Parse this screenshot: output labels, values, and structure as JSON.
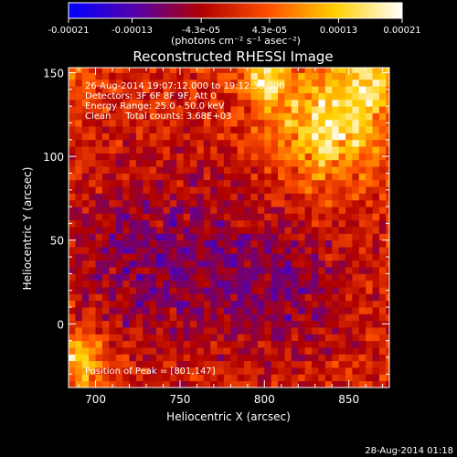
{
  "chart_data": {
    "type": "heatmap",
    "title": "Reconstructed RHESSI Image",
    "xlabel": "Heliocentric X (arcsec)",
    "ylabel": "Heliocentric Y (arcsec)",
    "xlim": [
      684,
      874
    ],
    "ylim": [
      -38,
      153
    ],
    "x_ticks": [
      700,
      750,
      800,
      850
    ],
    "y_ticks": [
      0,
      50,
      100,
      150
    ],
    "colorbar": {
      "tick_labels": [
        "-0.00021",
        "-0.00013",
        "-4.3e-05",
        "4.3e-05",
        "0.00013",
        "0.00021"
      ],
      "tick_values": [
        -0.00021,
        -0.00013,
        -4.3e-05,
        4.3e-05,
        0.00013,
        0.00021
      ],
      "range": [
        -0.00021,
        0.00021
      ],
      "unit_label": "(photons cm⁻² s⁻¹ asec⁻²)",
      "colors": [
        "#0000ff",
        "#5500aa",
        "#b00000",
        "#ff5000",
        "#ffd000",
        "#ffffff"
      ]
    },
    "annotations": [
      "26-Aug-2014 19:07:12.000 to 19:12:38.000",
      "Detectors: 3F 6F 8F 9F, Att 0",
      "Energy Range: 25.0 - 50.0 keV",
      "Clean     Total counts: 3.68E+03"
    ],
    "peak_label": "Position of Peak = [801,147]",
    "peak": {
      "x": 801,
      "y": 147
    },
    "pixel_size_arcsec": 4,
    "bright_regions": [
      {
        "x": 838,
        "y": 118,
        "sigma": 22,
        "amplitude": 0.0002
      },
      {
        "x": 801,
        "y": 147,
        "sigma": 10,
        "amplitude": 0.00021
      },
      {
        "x": 862,
        "y": 145,
        "sigma": 12,
        "amplitude": 0.00017
      },
      {
        "x": 688,
        "y": -22,
        "sigma": 14,
        "amplitude": 0.00016
      },
      {
        "x": 690,
        "y": 148,
        "sigma": 9,
        "amplitude": 8e-05
      }
    ],
    "dim_regions": [
      {
        "x": 740,
        "y": 40,
        "sigma": 40,
        "amplitude": -0.00011
      },
      {
        "x": 815,
        "y": 20,
        "sigma": 30,
        "amplitude": -9e-05
      }
    ]
  },
  "footer": {
    "timestamp": "28-Aug-2014 01:18"
  }
}
